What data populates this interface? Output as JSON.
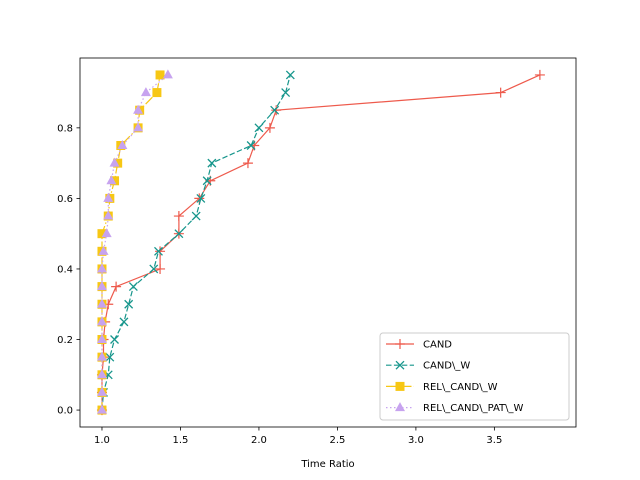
{
  "chart_data": {
    "type": "line",
    "title": "",
    "xlabel": "Time Ratio",
    "ylabel": "",
    "xlim": [
      0.86,
      4.02
    ],
    "ylim": [
      -0.048,
      0.998
    ],
    "x_ticks": [
      1.0,
      1.5,
      2.0,
      2.5,
      3.0,
      3.5
    ],
    "x_tick_labels": [
      "1.0",
      "1.5",
      "2.0",
      "2.5",
      "3.0",
      "3.5"
    ],
    "y_ticks": [
      0.0,
      0.2,
      0.4,
      0.6,
      0.8
    ],
    "y_tick_labels": [
      "0.0",
      "0.2",
      "0.4",
      "0.6",
      "0.8"
    ],
    "grid": false,
    "legend_position": "lower-right",
    "series": [
      {
        "name": "CAND",
        "color": "#ee5a4c",
        "marker": "plus",
        "dash": "solid",
        "points": [
          [
            1.0,
            0.0
          ],
          [
            1.0,
            0.05
          ],
          [
            1.0,
            0.1
          ],
          [
            1.01,
            0.15
          ],
          [
            1.01,
            0.2
          ],
          [
            1.02,
            0.25
          ],
          [
            1.04,
            0.3
          ],
          [
            1.09,
            0.35
          ],
          [
            1.37,
            0.4
          ],
          [
            1.37,
            0.45
          ],
          [
            1.49,
            0.5
          ],
          [
            1.49,
            0.55
          ],
          [
            1.62,
            0.6
          ],
          [
            1.69,
            0.65
          ],
          [
            1.93,
            0.7
          ],
          [
            1.97,
            0.75
          ],
          [
            2.07,
            0.8
          ],
          [
            2.11,
            0.85
          ],
          [
            3.54,
            0.9
          ],
          [
            3.79,
            0.95
          ]
        ]
      },
      {
        "name": "CAND\\_W",
        "color": "#17968c",
        "marker": "x",
        "dash": "dashed",
        "points": [
          [
            1.0,
            0.0
          ],
          [
            1.01,
            0.05
          ],
          [
            1.04,
            0.1
          ],
          [
            1.05,
            0.15
          ],
          [
            1.08,
            0.2
          ],
          [
            1.14,
            0.25
          ],
          [
            1.17,
            0.3
          ],
          [
            1.2,
            0.35
          ],
          [
            1.33,
            0.4
          ],
          [
            1.36,
            0.45
          ],
          [
            1.49,
            0.5
          ],
          [
            1.6,
            0.55
          ],
          [
            1.63,
            0.6
          ],
          [
            1.67,
            0.65
          ],
          [
            1.7,
            0.7
          ],
          [
            1.95,
            0.75
          ],
          [
            2.0,
            0.8
          ],
          [
            2.1,
            0.85
          ],
          [
            2.17,
            0.9
          ],
          [
            2.2,
            0.95
          ]
        ]
      },
      {
        "name": "REL\\_CAND\\_W",
        "color": "#f7c714",
        "marker": "square",
        "dash": "dashdot",
        "points": [
          [
            1.0,
            0.0
          ],
          [
            1.0,
            0.05
          ],
          [
            1.0,
            0.1
          ],
          [
            1.0,
            0.15
          ],
          [
            1.0,
            0.2
          ],
          [
            1.0,
            0.25
          ],
          [
            1.0,
            0.3
          ],
          [
            1.0,
            0.35
          ],
          [
            1.0,
            0.4
          ],
          [
            1.0,
            0.45
          ],
          [
            1.0,
            0.5
          ],
          [
            1.04,
            0.55
          ],
          [
            1.05,
            0.6
          ],
          [
            1.08,
            0.65
          ],
          [
            1.1,
            0.7
          ],
          [
            1.12,
            0.75
          ],
          [
            1.23,
            0.8
          ],
          [
            1.24,
            0.85
          ],
          [
            1.35,
            0.9
          ],
          [
            1.37,
            0.95
          ]
        ]
      },
      {
        "name": "REL\\_CAND\\_PAT\\_W",
        "color": "#c7a3ef",
        "marker": "triangle",
        "dash": "dotted",
        "points": [
          [
            1.0,
            0.0
          ],
          [
            1.0,
            0.05
          ],
          [
            1.0,
            0.1
          ],
          [
            1.0,
            0.15
          ],
          [
            1.0,
            0.2
          ],
          [
            1.0,
            0.25
          ],
          [
            1.0,
            0.3
          ],
          [
            1.0,
            0.35
          ],
          [
            1.0,
            0.4
          ],
          [
            1.01,
            0.45
          ],
          [
            1.03,
            0.5
          ],
          [
            1.04,
            0.55
          ],
          [
            1.04,
            0.6
          ],
          [
            1.06,
            0.65
          ],
          [
            1.08,
            0.7
          ],
          [
            1.13,
            0.75
          ],
          [
            1.23,
            0.8
          ],
          [
            1.23,
            0.85
          ],
          [
            1.28,
            0.9
          ],
          [
            1.42,
            0.95
          ]
        ]
      }
    ]
  }
}
